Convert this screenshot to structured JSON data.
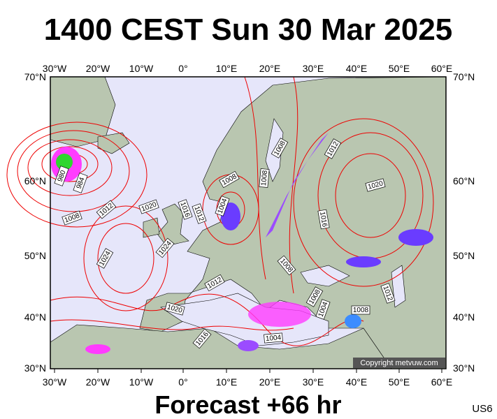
{
  "header": {
    "title": "1400 CEST Sun 30 Mar 2025"
  },
  "map": {
    "longitude_labels": [
      "30°W",
      "20°W",
      "10°W",
      "0°",
      "10°E",
      "20°E",
      "30°E",
      "40°E",
      "50°E",
      "60°E"
    ],
    "latitude_labels": [
      "70°N",
      "60°N",
      "50°N",
      "40°N",
      "30°N"
    ],
    "isobar_labels": [
      980,
      984,
      1008,
      1012,
      1020,
      1016,
      1012,
      1004,
      1008,
      1008,
      1008,
      1012,
      1020,
      1016,
      1024,
      1024,
      1008,
      1012,
      1008,
      1004,
      1012,
      1020,
      1008,
      1016,
      1004
    ],
    "copyright": "Copyright metvuw.com"
  },
  "footer": {
    "forecast": "Forecast +66 hr",
    "code": "US6"
  }
}
